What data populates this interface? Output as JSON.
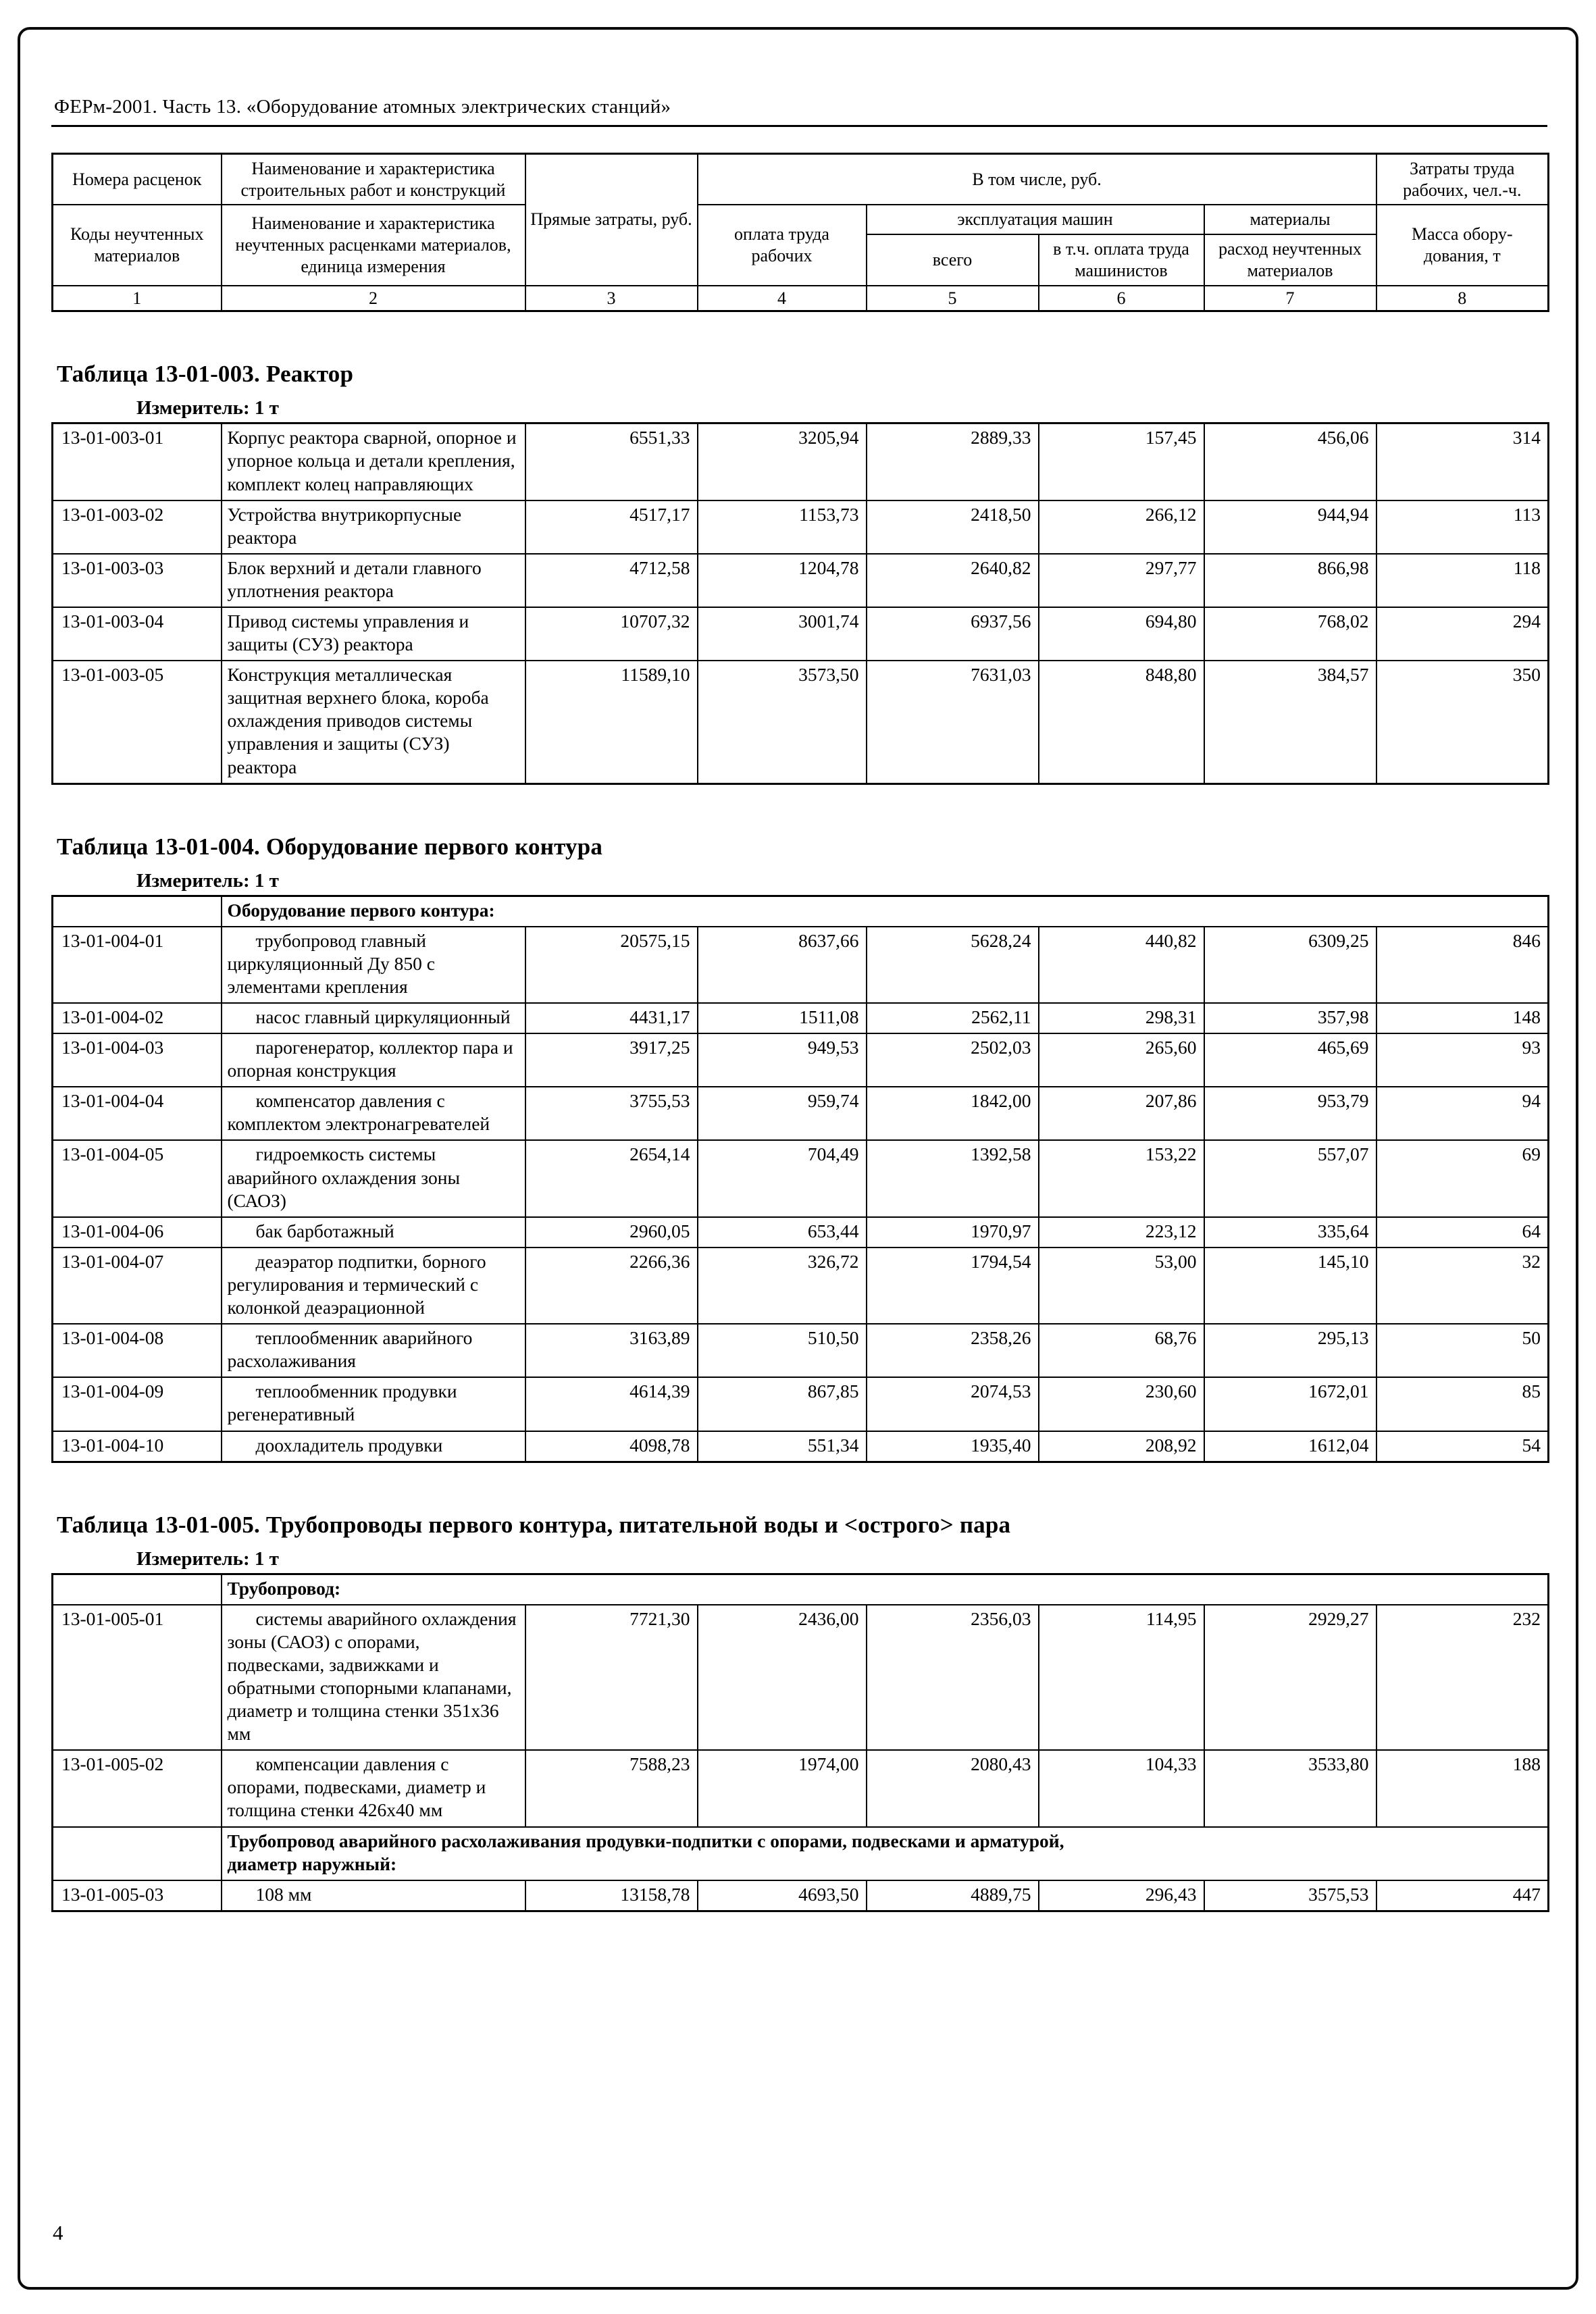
{
  "doc": {
    "header": "ФЕРм-2001. Часть 13. «Оборудование атомных электрических станций»",
    "page_number": "4"
  },
  "columns_header": {
    "c1_top": "Номера расценок",
    "c1_bottom": "Коды неучтенных материалов",
    "c2_top": "Наименование и характеристика строительных работ и конструкций",
    "c2_bottom": "Наименование и характеристика неучтенных расценками материалов, единица измерения",
    "c3": "Прямые затраты, руб.",
    "group_including": "В том числе, руб.",
    "c4": "оплата труда рабочих",
    "group_machines": "эксплуатация машин",
    "c5": "всего",
    "c6": "в т.ч. оплата труда машинистов",
    "group_materials": "материалы",
    "c7": "расход неучтенных материалов",
    "c8_top": "Затраты труда рабочих, чел.-ч.",
    "c8_bottom": "Масса обору-дования, т",
    "col_numbers": [
      "1",
      "2",
      "3",
      "4",
      "5",
      "6",
      "7",
      "8"
    ]
  },
  "sections": [
    {
      "title": "Таблица 13-01-003. Реактор",
      "measure": "Измеритель: 1 т",
      "indent_names": false,
      "rows": [
        {
          "type": "data",
          "code": "13-01-003-01",
          "name": "Корпус реактора сварной, опорное и упорное кольца и детали крепления, комплект колец направляющих",
          "values": [
            "6551,33",
            "3205,94",
            "2889,33",
            "157,45",
            "456,06",
            "314"
          ]
        },
        {
          "type": "data",
          "code": "13-01-003-02",
          "name": "Устройства внутрикорпусные реактора",
          "values": [
            "4517,17",
            "1153,73",
            "2418,50",
            "266,12",
            "944,94",
            "113"
          ]
        },
        {
          "type": "data",
          "code": "13-01-003-03",
          "name": "Блок верхний и детали главного уплотнения реактора",
          "values": [
            "4712,58",
            "1204,78",
            "2640,82",
            "297,77",
            "866,98",
            "118"
          ]
        },
        {
          "type": "data",
          "code": "13-01-003-04",
          "name": "Привод системы управления и защиты (СУЗ) реактора",
          "values": [
            "10707,32",
            "3001,74",
            "6937,56",
            "694,80",
            "768,02",
            "294"
          ]
        },
        {
          "type": "data",
          "code": "13-01-003-05",
          "name": "Конструкция металлическая защитная верхнего блока, короба охлаждения приводов системы управления и защиты (СУЗ) реактора",
          "values": [
            "11589,10",
            "3573,50",
            "7631,03",
            "848,80",
            "384,57",
            "350"
          ]
        }
      ]
    },
    {
      "title": "Таблица 13-01-004. Оборудование первого контура",
      "measure": "Измеритель: 1 т",
      "indent_names": true,
      "rows": [
        {
          "type": "subheader",
          "text": "Оборудование первого контура:"
        },
        {
          "type": "data",
          "code": "13-01-004-01",
          "name": "трубопровод главный циркуляционный Ду 850 с элементами крепления",
          "values": [
            "20575,15",
            "8637,66",
            "5628,24",
            "440,82",
            "6309,25",
            "846"
          ]
        },
        {
          "type": "data",
          "code": "13-01-004-02",
          "name": "насос главный циркуляционный",
          "values": [
            "4431,17",
            "1511,08",
            "2562,11",
            "298,31",
            "357,98",
            "148"
          ]
        },
        {
          "type": "data",
          "code": "13-01-004-03",
          "name": "парогенератор, коллектор пара и опорная конструкция",
          "values": [
            "3917,25",
            "949,53",
            "2502,03",
            "265,60",
            "465,69",
            "93"
          ]
        },
        {
          "type": "data",
          "code": "13-01-004-04",
          "name": "компенсатор давления с комплектом электронагревателей",
          "values": [
            "3755,53",
            "959,74",
            "1842,00",
            "207,86",
            "953,79",
            "94"
          ]
        },
        {
          "type": "data",
          "code": "13-01-004-05",
          "name": "гидроемкость системы аварийного охлаждения зоны (САОЗ)",
          "values": [
            "2654,14",
            "704,49",
            "1392,58",
            "153,22",
            "557,07",
            "69"
          ]
        },
        {
          "type": "data",
          "code": "13-01-004-06",
          "name": "бак барботажный",
          "values": [
            "2960,05",
            "653,44",
            "1970,97",
            "223,12",
            "335,64",
            "64"
          ]
        },
        {
          "type": "data",
          "code": "13-01-004-07",
          "name": "деаэратор подпитки, борного регулирования и термический с колонкой деаэрационной",
          "values": [
            "2266,36",
            "326,72",
            "1794,54",
            "53,00",
            "145,10",
            "32"
          ]
        },
        {
          "type": "data",
          "code": "13-01-004-08",
          "name": "теплообменник аварийного расхолаживания",
          "values": [
            "3163,89",
            "510,50",
            "2358,26",
            "68,76",
            "295,13",
            "50"
          ]
        },
        {
          "type": "data",
          "code": "13-01-004-09",
          "name": "теплообменник продувки регенеративный",
          "values": [
            "4614,39",
            "867,85",
            "2074,53",
            "230,60",
            "1672,01",
            "85"
          ]
        },
        {
          "type": "data",
          "code": "13-01-004-10",
          "name": "доохладитель продувки",
          "values": [
            "4098,78",
            "551,34",
            "1935,40",
            "208,92",
            "1612,04",
            "54"
          ]
        }
      ]
    },
    {
      "title": "Таблица 13-01-005. Трубопроводы первого контура, питательной воды и <острого> пара",
      "measure": "Измеритель: 1 т",
      "indent_names": true,
      "rows": [
        {
          "type": "subheader",
          "text": "Трубопровод:"
        },
        {
          "type": "data",
          "code": "13-01-005-01",
          "name": "системы аварийного охлаждения зоны (САОЗ) с опорами, подвесками, задвижками и обратными стопорными клапанами, диаметр и толщина стенки 351x36 мм",
          "values": [
            "7721,30",
            "2436,00",
            "2356,03",
            "114,95",
            "2929,27",
            "232"
          ]
        },
        {
          "type": "data",
          "code": "13-01-005-02",
          "name": "компенсации давления с опорами, подвесками, диаметр и толщина стенки 426x40 мм",
          "values": [
            "7588,23",
            "1974,00",
            "2080,43",
            "104,33",
            "3533,80",
            "188"
          ]
        },
        {
          "type": "subheader",
          "text": "Трубопровод аварийного расхолаживания продувки-подпитки с опорами, подвесками и арматурой,\nдиаметр наружный:"
        },
        {
          "type": "data",
          "code": "13-01-005-03",
          "name": "108 мм",
          "values": [
            "13158,78",
            "4693,50",
            "4889,75",
            "296,43",
            "3575,53",
            "447"
          ]
        }
      ]
    }
  ]
}
